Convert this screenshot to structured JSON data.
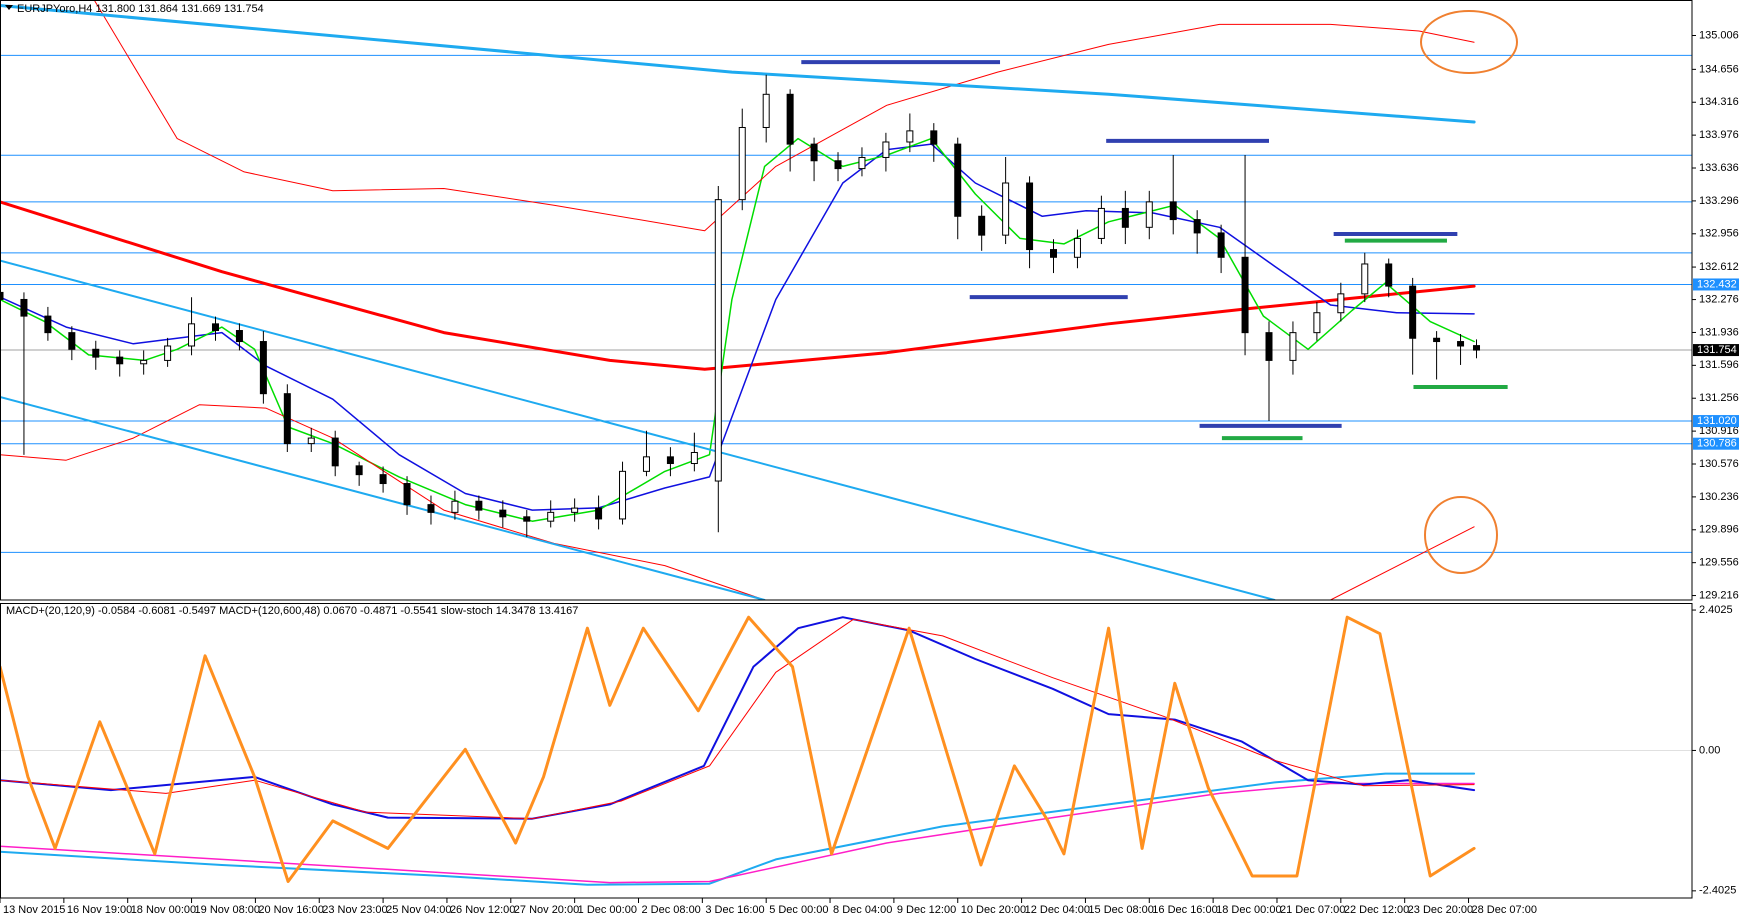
{
  "chart_data": [
    {
      "type": "candlestick",
      "title": "EURJPYoro,H4 131.800 131.864 131.669 131.754",
      "xlim": [
        0,
        212
      ],
      "ylim": [
        129.17,
        135.373
      ],
      "yticks": [
        135.006,
        134.656,
        134.316,
        133.976,
        133.636,
        133.296,
        132.956,
        132.612,
        132.276,
        131.936,
        131.596,
        131.256,
        130.916,
        130.576,
        130.236,
        129.896,
        129.556,
        129.216
      ],
      "up_color": "#ffffff",
      "down_color": "#000000",
      "x": [
        0,
        3,
        6,
        9,
        12,
        15,
        18,
        21,
        24,
        27,
        30,
        33,
        36,
        39,
        42,
        45,
        48,
        51,
        54,
        57,
        60,
        63,
        66,
        69,
        72,
        75,
        78,
        81,
        84,
        87,
        90,
        93,
        96,
        99,
        102,
        105,
        108,
        111,
        114,
        117,
        120,
        123,
        126,
        129,
        132,
        135,
        138,
        141,
        144,
        147,
        150,
        153,
        156,
        159,
        162,
        165,
        168,
        171,
        174,
        177,
        180,
        183,
        185
      ],
      "open": [
        132.35,
        132.277,
        132.105,
        131.934,
        131.762,
        131.681,
        131.612,
        131.647,
        131.796,
        132.025,
        131.956,
        131.842,
        131.303,
        130.787,
        130.844,
        130.557,
        130.466,
        130.374,
        130.156,
        130.076,
        130.191,
        130.099,
        130.03,
        129.985,
        130.076,
        130.12,
        130.008,
        130.5,
        130.65,
        130.581,
        130.4,
        133.309,
        134.055,
        134.398,
        133.883,
        133.711,
        133.63,
        133.745,
        133.905,
        134.02,
        133.883,
        133.137,
        132.942,
        133.481,
        132.793,
        132.713,
        132.908,
        133.218,
        133.023,
        133.286,
        133.103,
        132.965,
        132.713,
        131.934,
        131.647,
        131.934,
        132.14,
        132.335,
        132.644,
        132.415,
        131.876,
        131.842,
        131.8
      ],
      "high": [
        132.45,
        132.35,
        132.2,
        132.0,
        131.85,
        131.75,
        131.75,
        131.88,
        132.3,
        132.1,
        132.03,
        131.95,
        131.4,
        130.95,
        130.92,
        130.6,
        130.55,
        130.45,
        130.25,
        130.3,
        130.25,
        130.2,
        130.1,
        130.2,
        130.22,
        130.25,
        130.6,
        130.92,
        130.75,
        130.9,
        133.45,
        134.25,
        134.6,
        134.45,
        133.95,
        133.8,
        133.85,
        134.0,
        134.2,
        134.1,
        133.95,
        133.25,
        133.75,
        133.55,
        132.9,
        133.0,
        133.35,
        133.4,
        133.4,
        133.77,
        133.2,
        133.05,
        133.77,
        132.05,
        132.05,
        132.25,
        132.45,
        132.76,
        132.7,
        132.5,
        131.95,
        131.92,
        131.864
      ],
      "low": [
        132.15,
        130.67,
        131.85,
        131.65,
        131.55,
        131.48,
        131.5,
        131.58,
        131.7,
        131.85,
        131.75,
        131.2,
        130.7,
        130.7,
        130.45,
        130.35,
        130.28,
        130.05,
        129.95,
        130.0,
        130.0,
        129.92,
        129.82,
        129.92,
        129.98,
        129.9,
        129.95,
        130.45,
        130.45,
        130.5,
        129.87,
        133.2,
        133.9,
        133.6,
        133.5,
        133.5,
        133.55,
        133.6,
        133.8,
        133.7,
        132.9,
        132.78,
        132.85,
        132.6,
        132.55,
        132.6,
        132.85,
        132.85,
        132.9,
        132.95,
        132.75,
        132.55,
        131.7,
        131.02,
        131.5,
        131.85,
        132.05,
        132.25,
        132.3,
        131.5,
        131.45,
        131.6,
        131.669
      ],
      "close": [
        132.277,
        132.105,
        131.934,
        131.762,
        131.681,
        131.612,
        131.647,
        131.796,
        132.025,
        131.956,
        131.842,
        131.303,
        130.787,
        130.844,
        130.557,
        130.466,
        130.374,
        130.156,
        130.076,
        130.191,
        130.099,
        130.03,
        129.985,
        130.076,
        130.12,
        130.008,
        130.5,
        130.65,
        130.581,
        130.695,
        133.309,
        134.055,
        134.398,
        133.883,
        133.711,
        133.63,
        133.745,
        133.905,
        134.02,
        133.883,
        133.137,
        132.942,
        133.481,
        132.793,
        132.713,
        132.908,
        133.218,
        133.023,
        133.286,
        133.103,
        132.965,
        132.713,
        131.934,
        131.647,
        131.934,
        132.14,
        132.335,
        132.644,
        132.415,
        131.876,
        131.842,
        131.796,
        131.754
      ],
      "levels": {
        "color": "#1e90ff",
        "values": [
          134.8,
          133.768,
          133.286,
          132.759,
          132.432,
          131.02,
          130.786,
          129.663
        ]
      },
      "current_price": {
        "color": "#a0a0a0",
        "value": 131.754
      },
      "price_tags": {
        "values": [
          132.432,
          131.754,
          {
            "value": 131.02,
            "label": "131.020"
          },
          130.786
        ],
        "colors": [
          "#1e90ff",
          "#000000",
          "#1e90ff",
          "#1e90ff"
        ]
      },
      "segments": [
        {
          "color": "#3040b0",
          "x": [
            100.4,
            125.3
          ],
          "value": 134.731
        },
        {
          "color": "#3040b0",
          "x": [
            138.6,
            159
          ],
          "value": 133.917
        },
        {
          "color": "#3040b0",
          "x": [
            121.5,
            141.3
          ],
          "value": 132.301
        },
        {
          "color": "#3040b0",
          "x": [
            167.1,
            182.6
          ],
          "value": 132.954
        },
        {
          "color": "#3040b0",
          "x": [
            150.3,
            168.1
          ],
          "value": 130.97
        },
        {
          "color": "#22aa44",
          "x": [
            168.5,
            181.3
          ],
          "value": 132.885
        },
        {
          "color": "#22aa44",
          "x": [
            177.1,
            188.9
          ],
          "value": 131.372
        },
        {
          "color": "#22aa44",
          "x": [
            153.1,
            163.2
          ],
          "value": 130.844
        }
      ],
      "series": [
        {
          "color": "#ff0000",
          "width": 3,
          "x": [
            0,
            27.8,
            55.6,
            76.4,
            88.3,
            111.1,
            138.9,
            156.9,
            170.8,
            184.7
          ],
          "values": [
            133.286,
            132.564,
            131.934,
            131.647,
            131.555,
            131.727,
            132.025,
            132.186,
            132.301,
            132.415
          ]
        },
        {
          "color": "#1010e0",
          "width": 1.5,
          "x": [
            0,
            8.3,
            16.7,
            27.8,
            33.3,
            41.7,
            50,
            58.3,
            66.7,
            75,
            83.3,
            88.9,
            97.2,
            105.6,
            111.1,
            116.7,
            122.2,
            130.6,
            136.1,
            144.4,
            152.8,
            159.7,
            166.7,
            175,
            184.7
          ],
          "values": [
            132.301,
            131.991,
            131.819,
            131.934,
            131.59,
            131.246,
            130.672,
            130.271,
            130.099,
            130.122,
            130.328,
            130.443,
            132.277,
            133.481,
            133.825,
            133.883,
            133.481,
            133.137,
            133.195,
            133.172,
            133.023,
            132.621,
            132.22,
            132.14,
            132.128
          ]
        },
        {
          "color": "#00dd00",
          "width": 1.5,
          "x": [
            0,
            5.6,
            11.1,
            18.1,
            22.2,
            27.8,
            31.9,
            36.1,
            41.7,
            50,
            58.3,
            66.7,
            75,
            83.3,
            88.9,
            91.7,
            95.8,
            100,
            105.6,
            111.1,
            116.7,
            122.2,
            127.8,
            133.3,
            138.9,
            147.2,
            152.8,
            158.3,
            163.9,
            169.4,
            173.6,
            179.2,
            184.7
          ],
          "values": [
            132.277,
            132.048,
            131.704,
            131.647,
            131.762,
            131.991,
            131.762,
            130.959,
            130.787,
            130.443,
            130.156,
            129.985,
            130.099,
            130.5,
            130.672,
            132.277,
            133.653,
            133.94,
            133.653,
            133.768,
            133.94,
            133.367,
            132.908,
            132.851,
            133.08,
            133.252,
            132.908,
            132.105,
            131.762,
            132.163,
            132.449,
            132.048,
            131.842
          ]
        },
        {
          "color": "#ff0000",
          "width": 1,
          "x": [
            11.8,
            22.2,
            30.6,
            41.7,
            55.6,
            69.4,
            88.3,
            97.2,
            111.1,
            125,
            138.9,
            152.8,
            166.7,
            177.8,
            184.7
          ],
          "values": [
            135.373,
            133.94,
            133.596,
            133.401,
            133.424,
            133.252,
            132.988,
            133.653,
            134.284,
            134.628,
            134.914,
            135.121,
            135.121,
            135.052,
            134.937
          ]
        },
        {
          "color": "#ff0000",
          "width": 1,
          "x": [
            0,
            8.3,
            16.7,
            25,
            33.3,
            41.7,
            55.6,
            69.4,
            83.3,
            95.8,
            130,
            166.7,
            184.7
          ],
          "values": [
            130.672,
            130.615,
            130.844,
            131.189,
            131.154,
            130.844,
            130.099,
            129.755,
            129.526,
            129.17,
            null,
            129.17,
            129.927
          ]
        },
        {
          "color": "#1eaaf0",
          "width": 3,
          "x": [
            0,
            91.7,
            138.9,
            184.7
          ],
          "values": [
            135.316,
            134.628,
            134.399,
            134.112
          ]
        },
        {
          "color": "#1eaaf0",
          "width": 2,
          "x": [
            0,
            159.7
          ],
          "values": [
            132.679,
            129.17
          ]
        },
        {
          "color": "#1eaaf0",
          "width": 2,
          "x": [
            0,
            95.8
          ],
          "values": [
            131.269,
            129.17
          ]
        }
      ]
    },
    {
      "type": "line",
      "title": "MACD+(20,120,9) -0.0584 -0.6081 -0.5497 MACD+(120,600,48) 0.0670 -0.4871 -0.5541 slow-stoch 14.3478 13.4167",
      "xlim": [
        0,
        212
      ],
      "ylim": [
        -2.525,
        2.506
      ],
      "yticks": [
        2.4025,
        {
          "value": 0,
          "label": "0.00"
        },
        -2.4025
      ],
      "xticks": [
        {
          "value": 0,
          "label": "13 Nov 2015"
        },
        {
          "value": 8,
          "label": "16 Nov 19:00"
        },
        {
          "value": 16,
          "label": "18 Nov 00:00"
        },
        {
          "value": 24,
          "label": "19 Nov 08:00"
        },
        {
          "value": 32,
          "label": "20 Nov 16:00"
        },
        {
          "value": 40,
          "label": "23 Nov 23:00"
        },
        {
          "value": 48,
          "label": "25 Nov 04:00"
        },
        {
          "value": 56,
          "label": "26 Nov 12:00"
        },
        {
          "value": 64,
          "label": "27 Nov 20:00"
        },
        {
          "value": 72,
          "label": "1 Dec 00:00"
        },
        {
          "value": 80,
          "label": "2 Dec 08:00"
        },
        {
          "value": 88,
          "label": "3 Dec 16:00"
        },
        {
          "value": 96,
          "label": "5 Dec 00:00"
        },
        {
          "value": 104,
          "label": "8 Dec 04:00"
        },
        {
          "value": 112,
          "label": "9 Dec 12:00"
        },
        {
          "value": 120,
          "label": "10 Dec 20:00"
        },
        {
          "value": 128,
          "label": "12 Dec 04:00"
        },
        {
          "value": 136,
          "label": "15 Dec 08:00"
        },
        {
          "value": 144,
          "label": "16 Dec 16:00"
        },
        {
          "value": 152,
          "label": "18 Dec 00:00"
        },
        {
          "value": 160,
          "label": "21 Dec 07:00"
        },
        {
          "value": 168,
          "label": "22 Dec 12:00"
        },
        {
          "value": 176,
          "label": "23 Dec 20:00"
        },
        {
          "value": 184,
          "label": "28 Dec 07:00"
        }
      ],
      "series": [
        {
          "color": "#1eaaf0",
          "width": 2,
          "x": [
            0,
            27.8,
            55.6,
            73.6,
            88.9,
            97.2,
            118.1,
            138.9,
            159.7,
            173.6,
            184.7
          ],
          "values": [
            -1.734,
            -1.96,
            -2.148,
            -2.299,
            -2.28,
            -1.865,
            -1.3,
            -0.923,
            -0.546,
            -0.396,
            -0.396
          ]
        },
        {
          "color": "#ff1ec8",
          "width": 1.5,
          "x": [
            0,
            27.8,
            55.6,
            76.4,
            88.9,
            111.1,
            131.9,
            152.8,
            166.7,
            184.7
          ],
          "values": [
            -1.639,
            -1.865,
            -2.092,
            -2.261,
            -2.242,
            -1.583,
            -1.149,
            -0.735,
            -0.565,
            -0.565
          ]
        },
        {
          "color": "#1010e0",
          "width": 2,
          "x": [
            0,
            13.9,
            31.9,
            41.7,
            48.6,
            66.7,
            76.4,
            88.2,
            94.4,
            100,
            105.6,
            113.9,
            122.2,
            131.9,
            138.9,
            147.2,
            155.6,
            163.9,
            170.8,
            176.4,
            184.7
          ],
          "values": [
            -0.509,
            -0.678,
            -0.452,
            -0.923,
            -1.149,
            -1.168,
            -0.923,
            -0.264,
            1.432,
            2.092,
            2.28,
            2.054,
            1.564,
            1.055,
            0.622,
            0.528,
            0.151,
            -0.509,
            -0.584,
            -0.509,
            -0.678
          ]
        },
        {
          "color": "#ff0000",
          "width": 1,
          "x": [
            0,
            20.8,
            31.9,
            45.8,
            66.7,
            77.8,
            88.9,
            97.2,
            106.9,
            118.1,
            131.9,
            145.8,
            159.7,
            170.8,
            184.7
          ],
          "values": [
            -0.509,
            -0.735,
            -0.509,
            -1.055,
            -1.168,
            -0.867,
            -0.264,
            1.338,
            2.242,
            1.96,
            1.244,
            0.584,
            -0.17,
            -0.603,
            -0.584
          ]
        },
        {
          "color": "#ff9020",
          "width": 3,
          "x": [
            0,
            3.5,
            6.9,
            12.5,
            19.4,
            25.7,
            31.9,
            36.1,
            41.7,
            48.6,
            58.3,
            64.6,
            68.1,
            73.6,
            76.4,
            80.6,
            87.5,
            93.8,
            99.3,
            104.2,
            113.9,
            122.9,
            127.1,
            131.3,
            133.3,
            138.9,
            143.1,
            147.2,
            151.4,
            156.9,
            162.5,
            168.8,
            172.9,
            179.2,
            184.7
          ],
          "values": [
            1.432,
            -0.452,
            -1.677,
            0.49,
            -1.771,
            1.62,
            -0.452,
            -2.242,
            -1.206,
            -1.677,
            0.019,
            -1.583,
            -0.452,
            2.092,
            0.773,
            2.092,
            0.679,
            2.28,
            1.432,
            -1.771,
            2.092,
            -1.96,
            -0.264,
            -1.206,
            -1.771,
            2.092,
            -1.677,
            1.149,
            -0.641,
            -2.148,
            -2.148,
            2.28,
            1.997,
            -2.148,
            -1.677
          ]
        }
      ]
    }
  ]
}
